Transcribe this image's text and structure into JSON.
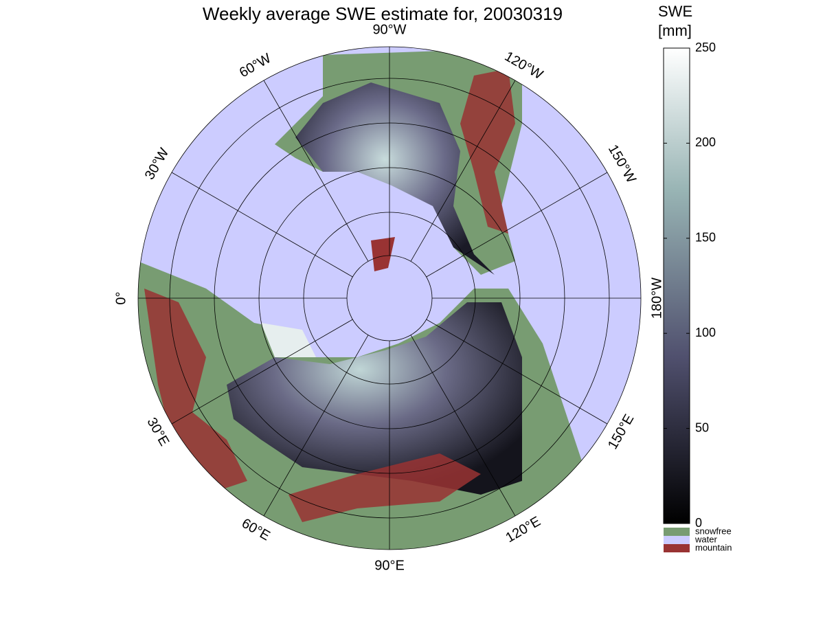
{
  "chart_data": {
    "type": "polar-map",
    "title": "Weekly average SWE estimate for, 20030319",
    "meridians": [
      {
        "value": 0,
        "label": "0°"
      },
      {
        "value": -30,
        "label": "30°W"
      },
      {
        "value": -60,
        "label": "60°W"
      },
      {
        "value": -90,
        "label": "90°W"
      },
      {
        "value": -120,
        "label": "120°W"
      },
      {
        "value": -150,
        "label": "150°W"
      },
      {
        "value": 180,
        "label": "180°W"
      },
      {
        "value": 150,
        "label": "150°E"
      },
      {
        "value": 120,
        "label": "120°E"
      },
      {
        "value": 90,
        "label": "90°E"
      },
      {
        "value": 60,
        "label": "60°E"
      },
      {
        "value": 30,
        "label": "30°E"
      }
    ],
    "colorbar": {
      "title": [
        "SWE",
        "[mm]"
      ],
      "lim": [
        0,
        250
      ],
      "ticks": [
        0,
        50,
        100,
        150,
        200,
        250
      ]
    },
    "legend": [
      {
        "name": "snowfree",
        "color": "#789c72"
      },
      {
        "name": "water",
        "color": "#ccccff"
      },
      {
        "name": "mountain",
        "color": "#993333"
      }
    ]
  }
}
